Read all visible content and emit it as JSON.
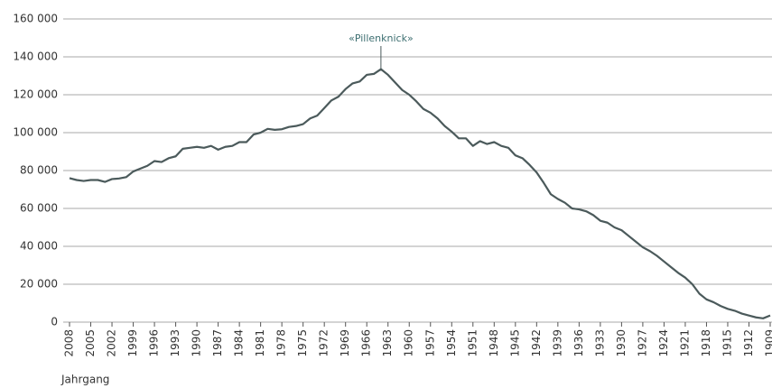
{
  "chart_data": {
    "type": "line",
    "xlabel": "Jahrgang",
    "x": [
      2008,
      2007,
      2006,
      2005,
      2004,
      2003,
      2002,
      2001,
      2000,
      1999,
      1998,
      1997,
      1996,
      1995,
      1994,
      1993,
      1992,
      1991,
      1990,
      1989,
      1988,
      1987,
      1986,
      1985,
      1984,
      1983,
      1982,
      1981,
      1980,
      1979,
      1978,
      1977,
      1976,
      1975,
      1974,
      1973,
      1972,
      1971,
      1970,
      1969,
      1968,
      1967,
      1966,
      1965,
      1964,
      1963,
      1962,
      1961,
      1960,
      1959,
      1958,
      1957,
      1956,
      1955,
      1954,
      1953,
      1952,
      1951,
      1950,
      1949,
      1948,
      1947,
      1946,
      1945,
      1944,
      1943,
      1942,
      1941,
      1940,
      1939,
      1938,
      1937,
      1936,
      1935,
      1934,
      1933,
      1932,
      1931,
      1930,
      1929,
      1928,
      1927,
      1926,
      1925,
      1924,
      1923,
      1922,
      1921,
      1920,
      1919,
      1918,
      1917,
      1916,
      1915,
      1914,
      1913,
      1912,
      1911,
      1910,
      1909
    ],
    "values": [
      76000,
      75000,
      74500,
      75000,
      75000,
      74000,
      75500,
      75800,
      76500,
      79500,
      81000,
      82500,
      85000,
      84500,
      86500,
      87500,
      91500,
      92000,
      92500,
      92000,
      93000,
      91000,
      92500,
      93000,
      95000,
      95000,
      99000,
      100000,
      102000,
      101500,
      101800,
      103000,
      103500,
      104500,
      107500,
      109000,
      113000,
      117000,
      119000,
      123000,
      126000,
      127000,
      130500,
      131000,
      133500,
      130500,
      126500,
      122500,
      120000,
      116500,
      112500,
      110500,
      107500,
      103500,
      100500,
      97000,
      97000,
      93000,
      95500,
      94000,
      95000,
      93000,
      92000,
      88000,
      86500,
      83000,
      79000,
      73500,
      67500,
      65000,
      63000,
      60000,
      59500,
      58500,
      56500,
      53500,
      52500,
      50000,
      48500,
      45500,
      42500,
      39500,
      37500,
      35000,
      32000,
      29000,
      26000,
      23500,
      20000,
      15000,
      12000,
      10500,
      8500,
      7000,
      6000,
      4500,
      3500,
      2500,
      2000,
      3500
    ],
    "color": "#4b5a5b",
    "xlim": [
      2008,
      1909
    ],
    "xticks": [
      2008,
      2005,
      2002,
      1999,
      1996,
      1993,
      1990,
      1987,
      1984,
      1981,
      1978,
      1975,
      1972,
      1969,
      1966,
      1963,
      1960,
      1957,
      1954,
      1951,
      1948,
      1945,
      1942,
      1939,
      1936,
      1933,
      1930,
      1927,
      1924,
      1921,
      1918,
      1915,
      1912,
      1909
    ],
    "ylim": [
      0,
      160000
    ],
    "yticks": [
      0,
      {
        "value": 20000,
        "label": "20 000"
      },
      {
        "value": 40000,
        "label": "40 000"
      },
      {
        "value": 60000,
        "label": "60 000"
      },
      {
        "value": 80000,
        "label": "80 000"
      },
      {
        "value": 100000,
        "label": "100 000"
      },
      {
        "value": 120000,
        "label": "120 000"
      },
      {
        "value": 140000,
        "label": "140 000"
      },
      {
        "value": 160000,
        "label": "160 000"
      }
    ],
    "grid": true,
    "annotation": {
      "text": "«Pillenknick»",
      "x": 1964
    }
  }
}
